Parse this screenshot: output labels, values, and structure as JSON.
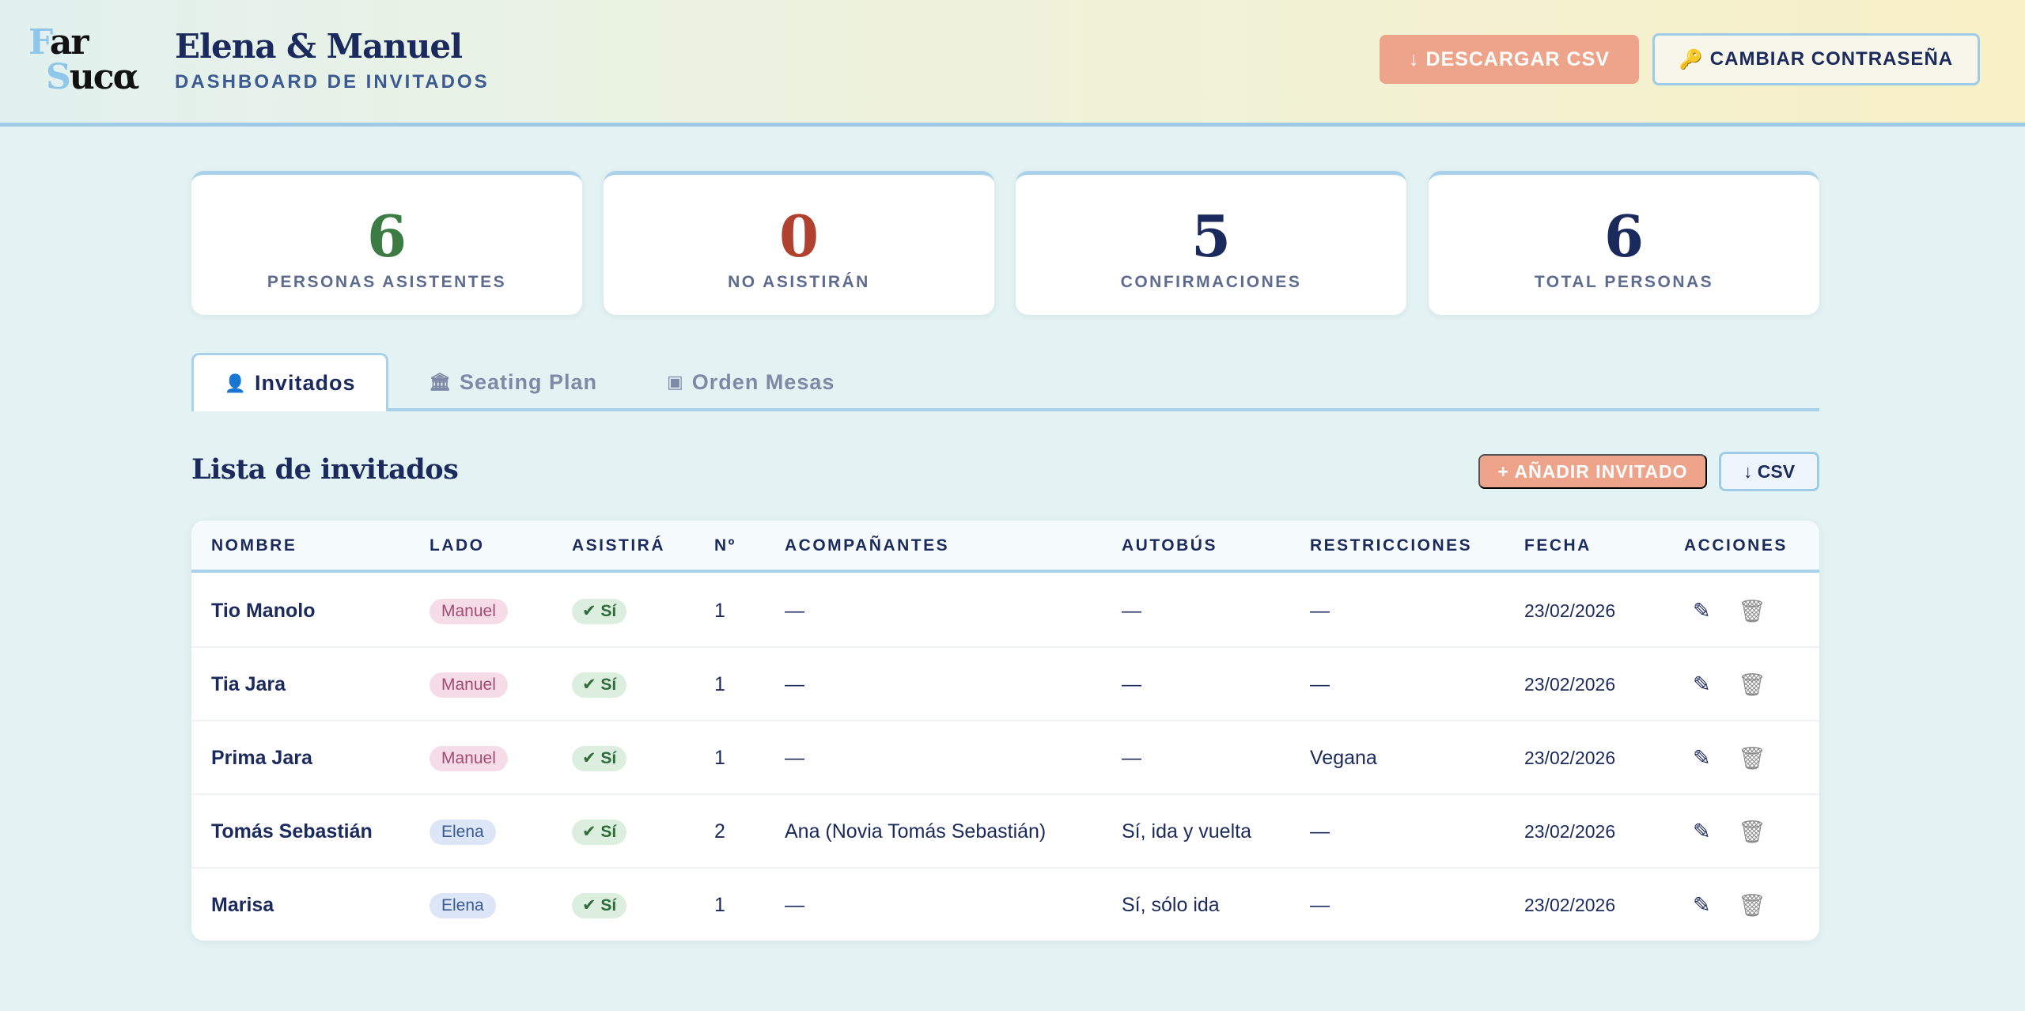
{
  "header": {
    "logo_line1_a": "F",
    "logo_line1_b": "ar",
    "logo_line2_a": "S",
    "logo_line2_b": "ucα",
    "title": "Elena & Manuel",
    "subtitle": "DASHBOARD DE INVITADOS",
    "download_csv_label": "↓ DESCARGAR CSV",
    "change_password_label": "CAMBIAR CONTRASEÑA",
    "change_password_icon": "🔑"
  },
  "stats": [
    {
      "value": "6",
      "label": "PERSONAS ASISTENTES",
      "color": "#3d7b44"
    },
    {
      "value": "0",
      "label": "NO ASISTIRÁN",
      "color": "#b0412f"
    },
    {
      "value": "5",
      "label": "CONFIRMACIONES",
      "color": "#1b2a5c"
    },
    {
      "value": "6",
      "label": "TOTAL PERSONAS",
      "color": "#1b2a5c"
    }
  ],
  "tabs": [
    {
      "icon": "👤",
      "label": "Invitados",
      "active": true
    },
    {
      "icon": "🏛",
      "label": "Seating Plan",
      "active": false
    },
    {
      "icon": "▣",
      "label": "Orden Mesas",
      "active": false
    }
  ],
  "list": {
    "title": "Lista de invitados",
    "add_label": "+ AÑADIR INVITADO",
    "csv_label": "↓ CSV"
  },
  "table": {
    "headers": [
      "NOMBRE",
      "LADO",
      "ASISTIRÁ",
      "Nº",
      "ACOMPAÑANTES",
      "AUTOBÚS",
      "RESTRICCIONES",
      "FECHA",
      "ACCIONES"
    ],
    "rows": [
      {
        "name": "Tio Manolo",
        "side": "Manuel",
        "attend": "✔ Sí",
        "count": "1",
        "companions": "—",
        "bus": "—",
        "restrictions": "—",
        "date": "23/02/2026"
      },
      {
        "name": "Tia Jara",
        "side": "Manuel",
        "attend": "✔ Sí",
        "count": "1",
        "companions": "—",
        "bus": "—",
        "restrictions": "—",
        "date": "23/02/2026"
      },
      {
        "name": "Prima Jara",
        "side": "Manuel",
        "attend": "✔ Sí",
        "count": "1",
        "companions": "—",
        "bus": "—",
        "restrictions": "Vegana",
        "date": "23/02/2026"
      },
      {
        "name": "Tomás Sebastián",
        "side": "Elena",
        "attend": "✔ Sí",
        "count": "2",
        "companions": "Ana (Novia Tomás Sebastián)",
        "bus": "Sí, ida y vuelta",
        "restrictions": "—",
        "date": "23/02/2026"
      },
      {
        "name": "Marisa",
        "side": "Elena",
        "attend": "✔ Sí",
        "count": "1",
        "companions": "—",
        "bus": "Sí, sólo ida",
        "restrictions": "—",
        "date": "23/02/2026"
      }
    ],
    "actions": {
      "edit_icon": "✎",
      "delete_icon": "🗑"
    }
  }
}
